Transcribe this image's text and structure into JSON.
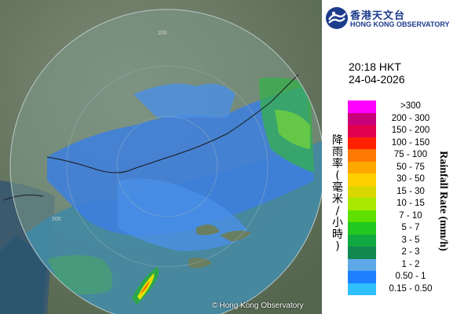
{
  "logo": {
    "chinese": "香港天文台",
    "english": "HONG KONG OBSERVATORY"
  },
  "timestamp": {
    "time": "20:18 HKT",
    "date": "24-04-2026"
  },
  "copyright": "Hong Kong Observatory",
  "range_ring_labels": [
    "200",
    "200"
  ],
  "legend": {
    "title_chinese": "降雨率(毫米/小時)",
    "title_english": "Rainfall Rate (mm/h)",
    "items": [
      {
        "label": ">300",
        "color": "#ff00ff"
      },
      {
        "label": "200 - 300",
        "color": "#c8007a"
      },
      {
        "label": "150 - 200",
        "color": "#e0004e"
      },
      {
        "label": "100 - 150",
        "color": "#ff2000"
      },
      {
        "label": "75 - 100",
        "color": "#ff7800"
      },
      {
        "label": "50 - 75",
        "color": "#ffa800"
      },
      {
        "label": "30 - 50",
        "color": "#ffd000"
      },
      {
        "label": "15 - 30",
        "color": "#d8d800"
      },
      {
        "label": "10 - 15",
        "color": "#a8e800"
      },
      {
        "label": "7 - 10",
        "color": "#60e000"
      },
      {
        "label": "5 - 7",
        "color": "#20c820"
      },
      {
        "label": "3 - 5",
        "color": "#10a840"
      },
      {
        "label": "2 - 3",
        "color": "#108850"
      },
      {
        "label": "1 - 2",
        "color": "#5ea8e8"
      },
      {
        "label": "0.50 - 1",
        "color": "#1e80ff"
      },
      {
        "label": "0.15 - 0.50",
        "color": "#30c0ff"
      }
    ]
  }
}
